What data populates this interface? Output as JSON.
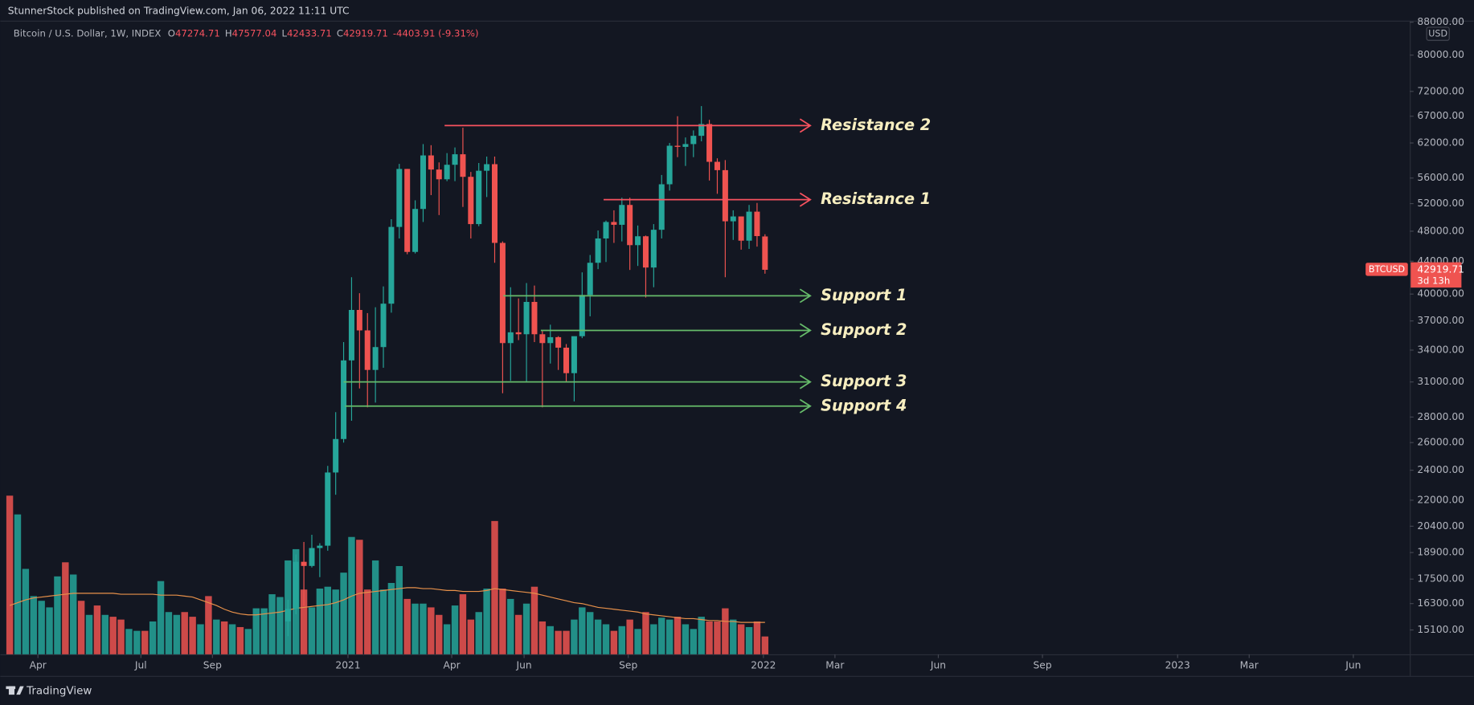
{
  "header": {
    "publisher": "StunnerStock published on TradingView.com, Jan 06, 2022 11:11 UTC"
  },
  "footer": {
    "brand": "TradingView"
  },
  "chart_data": {
    "type": "candlestick",
    "title": "Bitcoin / U.S. Dollar, 1W, INDEX",
    "legend_letters": [
      "O",
      "H",
      "L",
      "C"
    ],
    "change_label": "-4403.91 (-9.31%)",
    "currency": "USD",
    "symbol": "BTCUSD",
    "countdown": "3d 13h",
    "up_color": "#26a69a",
    "down_color": "#ef5350",
    "log_scale": true,
    "grid": false,
    "ylim": [
      14070,
      88400
    ],
    "yticks": [
      {
        "value": 88000,
        "label": "88000.00"
      },
      {
        "value": 80000,
        "label": "80000.00"
      },
      {
        "value": 72000,
        "label": "72000.00"
      },
      {
        "value": 67000,
        "label": "67000.00"
      },
      {
        "value": 62000,
        "label": "62000.00"
      },
      {
        "value": 56000,
        "label": "56000.00"
      },
      {
        "value": 52000,
        "label": "52000.00"
      },
      {
        "value": 48000,
        "label": "48000.00"
      },
      {
        "value": 44000,
        "label": "44000.00"
      },
      {
        "value": 40000,
        "label": "40000.00"
      },
      {
        "value": 37000,
        "label": "37000.00"
      },
      {
        "value": 34000,
        "label": "34000.00"
      },
      {
        "value": 31000,
        "label": "31000.00"
      },
      {
        "value": 28000,
        "label": "28000.00"
      },
      {
        "value": 26000,
        "label": "26000.00"
      },
      {
        "value": 24000,
        "label": "24000.00"
      },
      {
        "value": 22000,
        "label": "22000.00"
      },
      {
        "value": 20400,
        "label": "20400.00"
      },
      {
        "value": 18900,
        "label": "18900.00"
      },
      {
        "value": 17500,
        "label": "17500.00"
      },
      {
        "value": 16300,
        "label": "16300.00"
      },
      {
        "value": 15100,
        "label": "15100.00"
      }
    ],
    "xlim": [
      -1.18,
      176.1
    ],
    "xticks": [
      {
        "value": 3.55,
        "label": "Apr"
      },
      {
        "value": 16.5,
        "label": "Jul"
      },
      {
        "value": 25.5,
        "label": "Sep"
      },
      {
        "value": 42.55,
        "label": "2021"
      },
      {
        "value": 55.6,
        "label": "Apr"
      },
      {
        "value": 64.7,
        "label": "Jun"
      },
      {
        "value": 77.8,
        "label": "Sep"
      },
      {
        "value": 94.8,
        "label": "2022"
      },
      {
        "value": 103.8,
        "label": "Mar"
      },
      {
        "value": 116.8,
        "label": "Jun"
      },
      {
        "value": 129.9,
        "label": "Sep"
      },
      {
        "value": 146.9,
        "label": "2023"
      },
      {
        "value": 155.9,
        "label": "Mar"
      },
      {
        "value": 169,
        "label": "Jun"
      }
    ],
    "x": [
      35,
      36,
      37,
      38,
      39,
      40,
      41,
      42,
      43,
      44,
      45,
      46,
      47,
      48,
      49,
      50,
      51,
      52,
      53,
      54,
      55,
      56,
      57,
      58,
      59,
      60,
      61,
      62,
      63,
      64,
      65,
      66,
      67,
      68,
      69,
      70,
      71,
      72,
      73,
      74,
      75,
      76,
      77,
      78,
      79,
      80,
      81,
      82,
      83,
      84,
      85,
      86,
      87,
      88,
      89,
      90,
      91,
      92,
      93,
      94,
      95
    ],
    "open": [
      15480,
      16050,
      18400,
      18180,
      19150,
      19280,
      23840,
      26270,
      33000,
      38200,
      36000,
      32100,
      34300,
      38900,
      48600,
      57500,
      45200,
      51200,
      59800,
      57400,
      55800,
      58200,
      60000,
      56200,
      49000,
      57200,
      58300,
      46400,
      34700,
      35800,
      35600,
      39100,
      35600,
      34700,
      35300,
      34240,
      31800,
      35400,
      39900,
      43800,
      47000,
      49300,
      48900,
      51800,
      46100,
      47300,
      43200,
      48200,
      55000,
      61500,
      61300,
      61800,
      63300,
      65500,
      58700,
      57300,
      49400,
      50100,
      46700,
      50800,
      47274.71
    ],
    "high": [
      16480,
      18800,
      19490,
      19900,
      19420,
      24300,
      28400,
      34800,
      42000,
      40100,
      37850,
      38500,
      40900,
      49700,
      58350,
      57500,
      52500,
      61800,
      61600,
      58600,
      60200,
      61200,
      64800,
      57000,
      58500,
      59600,
      59600,
      46600,
      40800,
      39500,
      41300,
      41000,
      36000,
      36600,
      35400,
      34600,
      35000,
      42600,
      44800,
      48100,
      49500,
      51000,
      52900,
      52900,
      48800,
      47400,
      49000,
      56500,
      62000,
      67000,
      63000,
      64300,
      69000,
      66300,
      59300,
      59000,
      51000,
      50100,
      51800,
      52100,
      47577.04
    ],
    "low": [
      14830,
      15800,
      16200,
      18100,
      17600,
      19000,
      22350,
      26000,
      27700,
      30420,
      28800,
      29200,
      32300,
      37900,
      47000,
      44900,
      45000,
      49300,
      53300,
      50300,
      55500,
      55500,
      51500,
      47000,
      48700,
      53000,
      43800,
      30000,
      31100,
      35000,
      31000,
      34800,
      28800,
      32700,
      32100,
      31000,
      29300,
      35200,
      37500,
      43000,
      43900,
      46400,
      46600,
      42900,
      43400,
      39600,
      40800,
      47000,
      54000,
      59500,
      58000,
      59500,
      62300,
      55600,
      53500,
      42000,
      46800,
      45500,
      45600,
      45900,
      42433.71
    ],
    "close": [
      16050,
      18400,
      18180,
      19150,
      19280,
      23840,
      26270,
      33000,
      38200,
      36000,
      32100,
      34300,
      38900,
      48600,
      57500,
      45200,
      51200,
      59800,
      57400,
      55800,
      58200,
      60000,
      56200,
      49000,
      57200,
      58300,
      46400,
      34700,
      35800,
      35600,
      39100,
      35600,
      34700,
      35300,
      34240,
      31800,
      35400,
      39900,
      43800,
      47000,
      49300,
      48900,
      51800,
      46100,
      47300,
      43200,
      48200,
      55000,
      61500,
      61300,
      61800,
      63300,
      65500,
      58700,
      57300,
      49400,
      50100,
      46700,
      50800,
      47323.62,
      42919.71
    ],
    "levels": [
      {
        "label": "Resistance 2",
        "value": 65200,
        "x": [
          54.7,
          100.7
        ],
        "color": "#f7525f"
      },
      {
        "label": "Resistance 1",
        "value": 52600,
        "x": [
          74.7,
          100.7
        ],
        "color": "#f7525f"
      },
      {
        "label": "Support 1",
        "value": 39800,
        "x": [
          62.1,
          100.7
        ],
        "color": "#66bb6a"
      },
      {
        "label": "Support 2",
        "value": 36000,
        "x": [
          66.8,
          100.7
        ],
        "color": "#66bb6a"
      },
      {
        "label": "Support 3",
        "value": 31000,
        "x": [
          42,
          100.7
        ],
        "color": "#66bb6a"
      },
      {
        "label": "Support 4",
        "value": 28900,
        "x": [
          42.2,
          100.7
        ],
        "color": "#66bb6a"
      }
    ],
    "volume": {
      "x": [
        0,
        1,
        2,
        3,
        4,
        5,
        6,
        7,
        8,
        9,
        10,
        11,
        12,
        13,
        14,
        15,
        16,
        17,
        18,
        19,
        20,
        21,
        22,
        23,
        24,
        25,
        26,
        27,
        28,
        29,
        30,
        31,
        32,
        33,
        34,
        35,
        36,
        37,
        38,
        39,
        40,
        41,
        42,
        43,
        44,
        45,
        46,
        47,
        48,
        49,
        50,
        51,
        52,
        53,
        54,
        55,
        56,
        57,
        58,
        59,
        60,
        61,
        62,
        63,
        64,
        65,
        66,
        67,
        68,
        69,
        70,
        71,
        72,
        73,
        74,
        75,
        76,
        77,
        78,
        79,
        80,
        81,
        82,
        83,
        84,
        85,
        86,
        87,
        88,
        89,
        90,
        91,
        92,
        93,
        94,
        95
      ],
      "values": [
        169,
        149,
        91,
        62,
        57,
        50,
        83,
        98,
        85,
        57,
        42,
        52,
        42,
        40,
        37,
        27,
        25,
        25,
        35,
        78,
        45,
        42,
        45,
        40,
        32,
        62,
        37,
        35,
        32,
        29,
        27,
        49,
        49,
        64,
        61,
        100,
        112,
        69,
        50,
        70,
        72,
        69,
        87,
        125,
        122,
        69,
        100,
        69,
        76,
        94,
        59,
        54,
        54,
        50,
        42,
        32,
        52,
        64,
        37,
        45,
        70,
        142,
        70,
        59,
        42,
        54,
        72,
        35,
        30,
        25,
        25,
        37,
        50,
        45,
        37,
        32,
        25,
        30,
        37,
        27,
        45,
        32,
        39,
        37,
        40,
        32,
        27,
        40,
        35,
        35,
        49,
        37,
        32,
        29,
        35,
        19
      ],
      "colors": [
        "#ef5350",
        "#26a69a",
        "#26a69a",
        "#26a69a",
        "#26a69a",
        "#26a69a",
        "#26a69a",
        "#ef5350",
        "#26a69a",
        "#ef5350",
        "#26a69a",
        "#ef5350",
        "#26a69a",
        "#ef5350",
        "#ef5350",
        "#26a69a",
        "#26a69a",
        "#ef5350",
        "#26a69a",
        "#26a69a",
        "#26a69a",
        "#26a69a",
        "#ef5350",
        "#ef5350",
        "#26a69a",
        "#ef5350",
        "#26a69a",
        "#ef5350",
        "#26a69a",
        "#ef5350",
        "#26a69a",
        "#26a69a",
        "#26a69a",
        "#26a69a",
        "#26a69a",
        "#26a69a",
        "#26a69a",
        "#ef5350",
        "#26a69a",
        "#26a69a",
        "#26a69a",
        "#26a69a",
        "#26a69a",
        "#26a69a",
        "#ef5350",
        "#ef5350",
        "#26a69a",
        "#26a69a",
        "#26a69a",
        "#26a69a",
        "#ef5350",
        "#26a69a",
        "#26a69a",
        "#ef5350",
        "#ef5350",
        "#26a69a",
        "#26a69a",
        "#ef5350",
        "#ef5350",
        "#26a69a",
        "#26a69a",
        "#ef5350",
        "#ef5350",
        "#26a69a",
        "#ef5350",
        "#26a69a",
        "#ef5350",
        "#ef5350",
        "#26a69a",
        "#ef5350",
        "#ef5350",
        "#26a69a",
        "#26a69a",
        "#26a69a",
        "#26a69a",
        "#26a69a",
        "#ef5350",
        "#26a69a",
        "#ef5350",
        "#26a69a",
        "#ef5350",
        "#26a69a",
        "#26a69a",
        "#26a69a",
        "#ef5350",
        "#26a69a",
        "#26a69a",
        "#26a69a",
        "#ef5350",
        "#ef5350",
        "#ef5350",
        "#26a69a",
        "#ef5350",
        "#26a69a",
        "#ef5350",
        "#ef5350"
      ],
      "ma": [
        52,
        55,
        58,
        60,
        61,
        62,
        63,
        64,
        65,
        65,
        65,
        65,
        65,
        65,
        64,
        64,
        64,
        64,
        64,
        63,
        63,
        63,
        62,
        61,
        58,
        55,
        52,
        48,
        45,
        43,
        42,
        42,
        43,
        44,
        45,
        47,
        49,
        50,
        51,
        52,
        53,
        55,
        58,
        62,
        65,
        66,
        67,
        68,
        69,
        70,
        71,
        71,
        70,
        70,
        69,
        68,
        68,
        67,
        67,
        67,
        68,
        70,
        69,
        68,
        67,
        66,
        65,
        63,
        61,
        59,
        57,
        55,
        54,
        52,
        50,
        49,
        48,
        47,
        46,
        45,
        43,
        42,
        41,
        40,
        39,
        38,
        38,
        37,
        36,
        36,
        35,
        35,
        34,
        34,
        34,
        34
      ],
      "ma_color": "#e8914a"
    }
  }
}
